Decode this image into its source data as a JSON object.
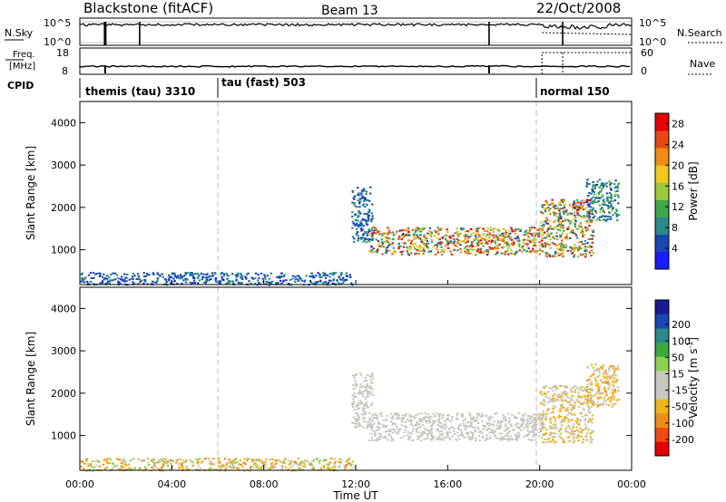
{
  "header": {
    "station": "Blackstone (fitACF)",
    "beam": "Beam 13",
    "date": "22/Oct/2008"
  },
  "nsky_panel": {
    "label": "N.Sky",
    "ticks_left": [
      "10^5",
      "10^0"
    ],
    "ticks_right": [
      "10^5",
      "10^0"
    ],
    "right_label": "N.Search"
  },
  "freq_panel": {
    "label_line1": "Freq.",
    "label_line2": "[MHz]",
    "ticks_left": [
      "18",
      "8"
    ],
    "ticks_right": [
      "60",
      "0"
    ],
    "right_label": "Nave"
  },
  "cpid_panel": {
    "label": "CPID",
    "modes": [
      {
        "name": "themis (tau) 3310",
        "start_hr": 0
      },
      {
        "name": "tau (fast) 503",
        "start_hr": 6
      },
      {
        "name": "normal 150",
        "start_hr": 20
      }
    ]
  },
  "colors": {
    "power_scale": [
      "#1a1aff",
      "#1a46b4",
      "#2b8a8a",
      "#3ea84a",
      "#a0c83c",
      "#f0c81e",
      "#f08c14",
      "#e84614",
      "#e60000"
    ],
    "velocity_scale": [
      "#e60000",
      "#f04a14",
      "#f08c14",
      "#f0b41e",
      "#c8c8c0",
      "#c8c8c0",
      "#8cd250",
      "#3ca83c",
      "#2b8a8a",
      "#1a46b4",
      "#1a1a96"
    ]
  },
  "chart_data": [
    {
      "type": "heatmap",
      "title": "",
      "ylabel": "Slant Range [km]",
      "ylim": [
        180,
        4500
      ],
      "yticks": [
        "1000",
        "2000",
        "3000",
        "4000"
      ],
      "xlim": [
        0,
        24
      ],
      "colorbar": {
        "label": "Power [dB]",
        "ticks": [
          "4",
          "8",
          "12",
          "16",
          "20",
          "24",
          "28"
        ],
        "range": [
          0,
          30
        ]
      },
      "regions": [
        {
          "t0": 0,
          "t1": 11.9,
          "r0": 190,
          "r1": 480,
          "min": 3,
          "max": 9
        },
        {
          "t0": 11.8,
          "t1": 12.7,
          "r0": 1200,
          "r1": 2500,
          "min": 3,
          "max": 10
        },
        {
          "t0": 12.5,
          "t1": 20.1,
          "r0": 900,
          "r1": 1550,
          "min": 5,
          "max": 29
        },
        {
          "t0": 20.0,
          "t1": 22.3,
          "r0": 850,
          "r1": 2200,
          "min": 4,
          "max": 29
        },
        {
          "t0": 22.0,
          "t1": 23.4,
          "r0": 1700,
          "r1": 2700,
          "min": 4,
          "max": 14
        }
      ]
    },
    {
      "type": "heatmap",
      "title": "",
      "ylabel": "Slant Range [km]",
      "xlabel": "Time UT",
      "ylim": [
        180,
        4500
      ],
      "yticks": [
        "1000",
        "2000",
        "3000",
        "4000"
      ],
      "xlim": [
        0,
        24
      ],
      "xticks": [
        "00:00",
        "04:00",
        "08:00",
        "12:00",
        "16:00",
        "20:00",
        "00:00"
      ],
      "colorbar": {
        "label_main": "Velocity [m s",
        "label_sup": "-1",
        "label_end": "]",
        "ticks": [
          "200",
          "100",
          "50",
          "15",
          "-15",
          "-50",
          "-100",
          "-200"
        ]
      },
      "regions": [
        {
          "t0": 0,
          "t1": 11.9,
          "r0": 190,
          "r1": 480,
          "min": -80,
          "max": 40
        },
        {
          "t0": 11.8,
          "t1": 12.7,
          "r0": 1200,
          "r1": 2500,
          "min": -14,
          "max": 14
        },
        {
          "t0": 12.5,
          "t1": 20.1,
          "r0": 900,
          "r1": 1550,
          "min": -14,
          "max": 14
        },
        {
          "t0": 20.0,
          "t1": 22.3,
          "r0": 850,
          "r1": 2200,
          "min": -40,
          "max": 14
        },
        {
          "t0": 22.0,
          "t1": 23.4,
          "r0": 1700,
          "r1": 2700,
          "min": -60,
          "max": 14
        }
      ]
    }
  ]
}
